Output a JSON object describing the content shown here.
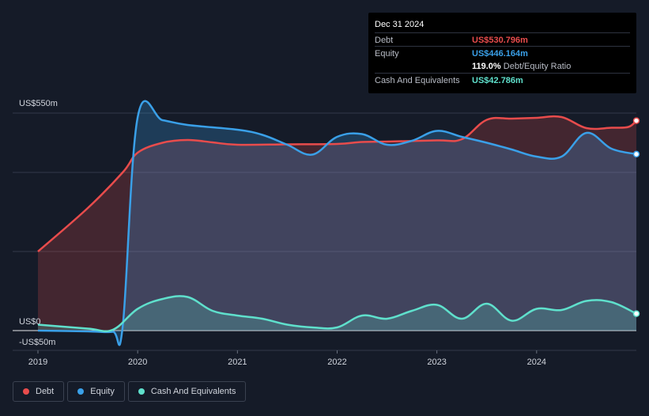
{
  "tooltip": {
    "date": "Dec 31 2024",
    "rows": [
      {
        "label": "Debt",
        "value": "US$530.796m",
        "suffix": "",
        "color": "#e84c4c"
      },
      {
        "label": "Equity",
        "value": "US$446.164m",
        "suffix": "",
        "color": "#3aa0e8"
      },
      {
        "label": "",
        "value": "119.0%",
        "suffix": " Debt/Equity Ratio",
        "color": "#ffffff"
      },
      {
        "label": "Cash And Equivalents",
        "value": "US$42.786m",
        "suffix": "",
        "color": "#5fe0cc"
      }
    ]
  },
  "legend": [
    {
      "label": "Debt",
      "color": "#e84c4c"
    },
    {
      "label": "Equity",
      "color": "#3aa0e8"
    },
    {
      "label": "Cash And Equivalents",
      "color": "#5fe0cc"
    }
  ],
  "chart_data": {
    "type": "area",
    "xlim": [
      2019,
      2025.0
    ],
    "ylim": [
      -50,
      550
    ],
    "y_tick_labels": [
      {
        "value": 550,
        "label": "US$550m"
      },
      {
        "value": 0,
        "label": "US$0"
      },
      {
        "value": -50,
        "label": "-US$50m"
      }
    ],
    "x_ticks": [
      2019,
      2020,
      2021,
      2022,
      2023,
      2024
    ],
    "x_tick_labels": [
      "2019",
      "2020",
      "2021",
      "2022",
      "2023",
      "2024"
    ],
    "gridlines": [
      550,
      400,
      200,
      0
    ],
    "series": [
      {
        "name": "Debt",
        "color": "#e84c4c",
        "x": [
          2019.0,
          2019.5,
          2019.85,
          2020.0,
          2020.25,
          2020.5,
          2020.75,
          2021.0,
          2021.5,
          2022.0,
          2022.25,
          2022.5,
          2023.0,
          2023.25,
          2023.5,
          2023.75,
          2024.0,
          2024.25,
          2024.5,
          2024.75,
          2024.92,
          2025.0
        ],
        "values": [
          200,
          310,
          400,
          450,
          475,
          482,
          476,
          470,
          471,
          472,
          477,
          478,
          481,
          484,
          533,
          536,
          538,
          540,
          512,
          513,
          515,
          530.796
        ]
      },
      {
        "name": "Equity",
        "color": "#3aa0e8",
        "x": [
          2019.0,
          2019.5,
          2019.75,
          2019.85,
          2020.0,
          2020.25,
          2020.5,
          2021.0,
          2021.25,
          2021.5,
          2021.75,
          2022.0,
          2022.25,
          2022.5,
          2022.75,
          2023.0,
          2023.25,
          2023.5,
          2023.75,
          2024.0,
          2024.25,
          2024.5,
          2024.75,
          2025.0
        ],
        "values": [
          0,
          -2,
          -3,
          10,
          540,
          532,
          520,
          508,
          495,
          470,
          445,
          490,
          497,
          470,
          480,
          505,
          490,
          475,
          458,
          440,
          440,
          500,
          460,
          446.164
        ]
      },
      {
        "name": "Cash And Equivalents",
        "color": "#5fe0cc",
        "x": [
          2019.0,
          2019.5,
          2019.75,
          2020.0,
          2020.25,
          2020.5,
          2020.75,
          2021.0,
          2021.25,
          2021.5,
          2021.75,
          2022.0,
          2022.25,
          2022.5,
          2022.75,
          2023.0,
          2023.25,
          2023.5,
          2023.75,
          2024.0,
          2024.25,
          2024.5,
          2024.75,
          2025.0
        ],
        "values": [
          15,
          5,
          2,
          55,
          80,
          85,
          50,
          38,
          30,
          15,
          8,
          8,
          38,
          30,
          50,
          65,
          30,
          68,
          25,
          55,
          52,
          75,
          72,
          42.786
        ]
      }
    ]
  }
}
